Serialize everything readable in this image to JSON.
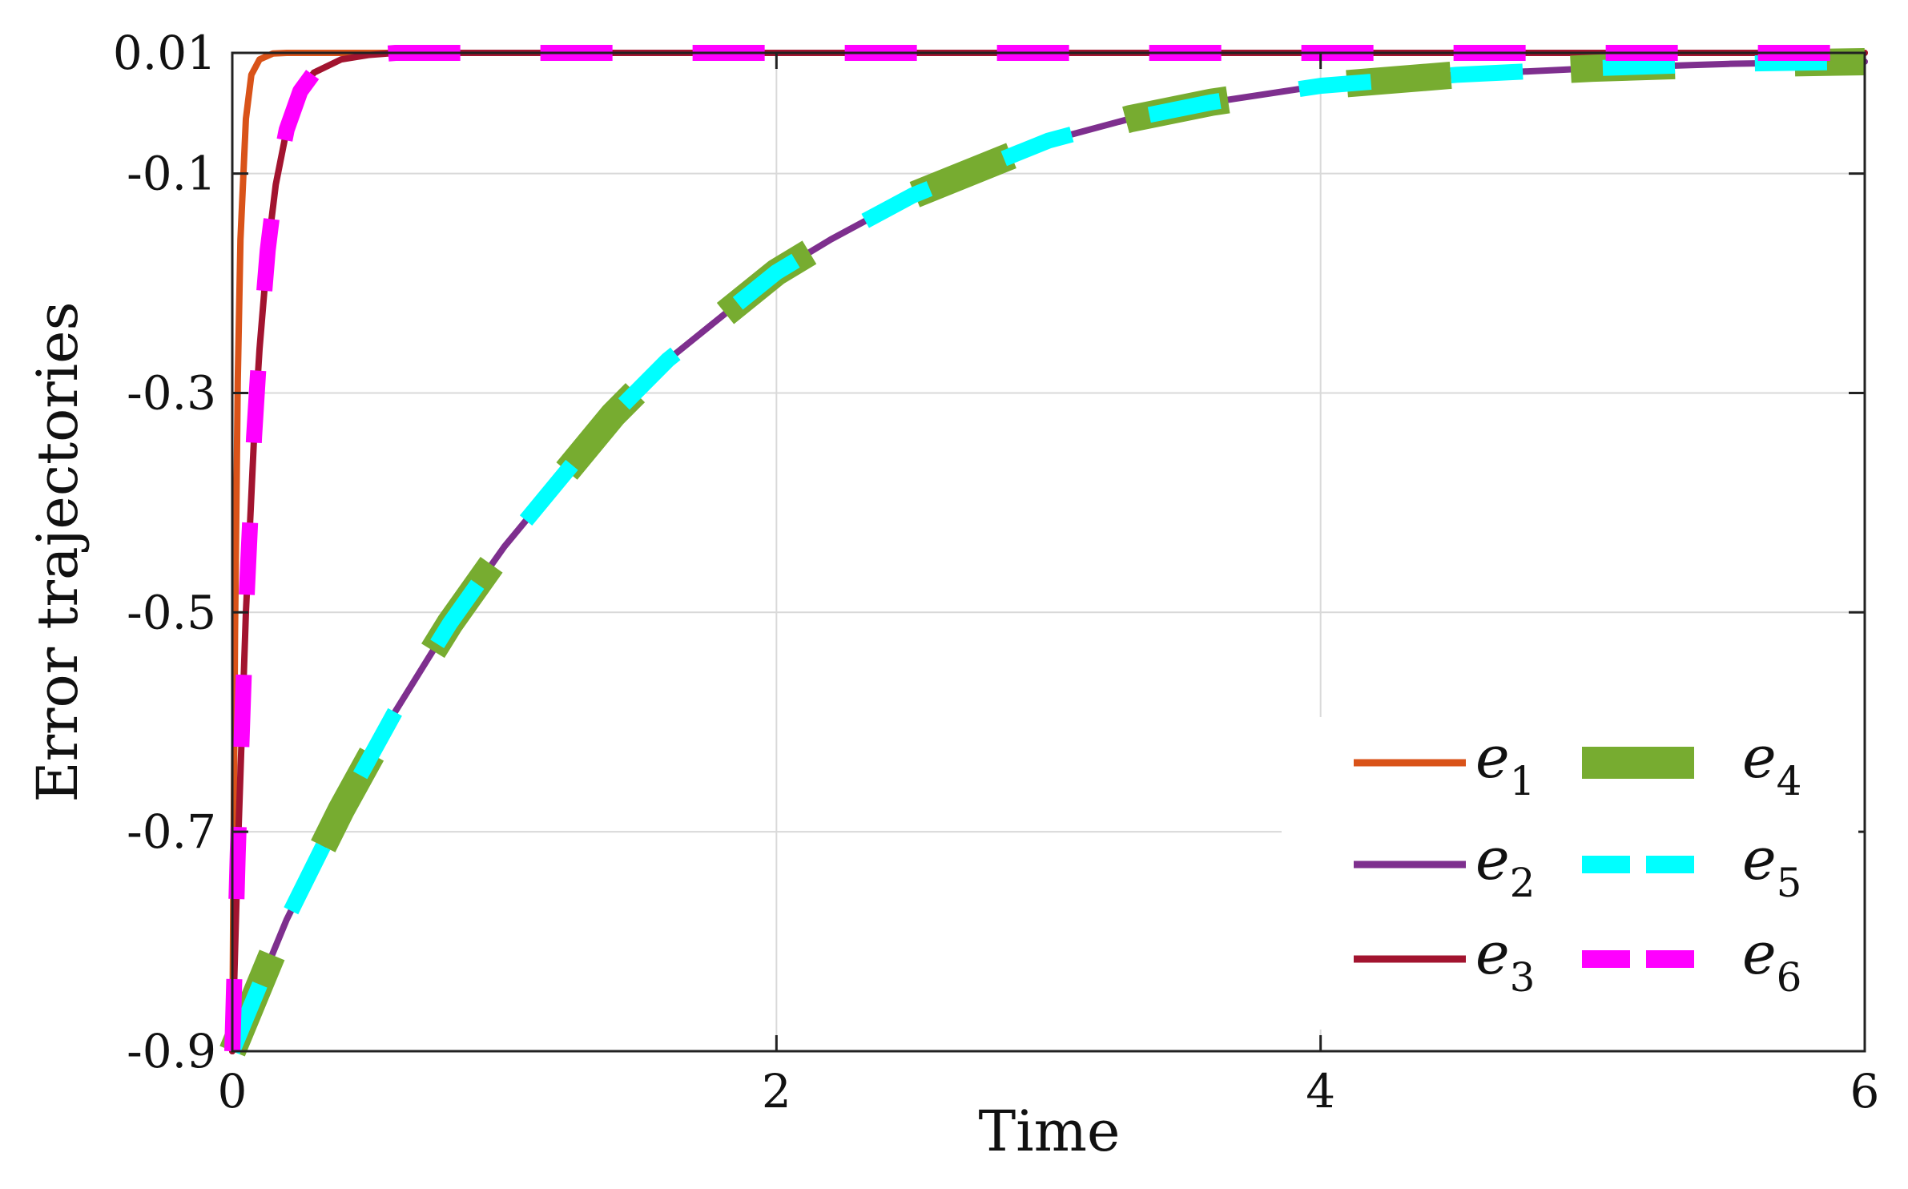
{
  "chart_data": {
    "type": "line",
    "title": "",
    "xlabel": "Time",
    "ylabel": "Error trajectories",
    "xlim": [
      0,
      6
    ],
    "ylim": [
      -0.9,
      0.01
    ],
    "xticks": [
      0,
      2,
      4,
      6
    ],
    "xtick_labels": [
      "0",
      "2",
      "4",
      "6"
    ],
    "yticks": [
      0.01,
      -0.1,
      -0.3,
      -0.5,
      -0.7,
      -0.9
    ],
    "ytick_labels": [
      "0.01",
      "-0.1",
      "-0.3",
      "-0.5",
      "-0.7",
      "-0.9"
    ],
    "grid": true,
    "legend_placement": "bottom-right",
    "series": [
      {
        "name": "e1",
        "color": "#D95319",
        "style": "solid",
        "x": [
          0,
          0.01,
          0.02,
          0.03,
          0.05,
          0.07,
          0.1,
          0.15,
          0.2,
          6
        ],
        "y": [
          -0.9,
          -0.52,
          -0.29,
          -0.16,
          -0.05,
          -0.01,
          0.004,
          0.0095,
          0.01,
          0.01
        ]
      },
      {
        "name": "e2",
        "color": "#7E2F8E",
        "style": "solid",
        "x": [
          0,
          0.1,
          0.2,
          0.4,
          0.6,
          0.8,
          1.0,
          1.2,
          1.4,
          1.6,
          1.8,
          2.0,
          2.2,
          2.5,
          2.8,
          3.0,
          3.3,
          3.6,
          4.0,
          4.5,
          5.0,
          5.5,
          6.0
        ],
        "y": [
          -0.9,
          -0.84,
          -0.78,
          -0.68,
          -0.59,
          -0.51,
          -0.44,
          -0.38,
          -0.32,
          -0.27,
          -0.23,
          -0.19,
          -0.16,
          -0.12,
          -0.09,
          -0.07,
          -0.05,
          -0.035,
          -0.02,
          -0.01,
          -0.004,
          0.0,
          0.002
        ]
      },
      {
        "name": "e3",
        "color": "#A2142F",
        "style": "solid",
        "x": [
          0,
          0.02,
          0.05,
          0.08,
          0.1,
          0.13,
          0.16,
          0.2,
          0.25,
          0.3,
          0.4,
          0.5,
          0.6,
          6
        ],
        "y": [
          -0.9,
          -0.72,
          -0.5,
          -0.34,
          -0.26,
          -0.17,
          -0.11,
          -0.06,
          -0.025,
          -0.008,
          0.004,
          0.008,
          0.01,
          0.01
        ]
      },
      {
        "name": "e4",
        "color": "#77AC30",
        "style": "dashed-thick",
        "x": [
          0,
          0.1,
          0.2,
          0.4,
          0.6,
          0.8,
          1.0,
          1.2,
          1.4,
          1.6,
          1.8,
          2.0,
          2.2,
          2.5,
          2.8,
          3.0,
          3.3,
          3.6,
          4.0,
          4.5,
          5.0,
          5.5,
          6.0
        ],
        "y": [
          -0.9,
          -0.84,
          -0.78,
          -0.68,
          -0.59,
          -0.51,
          -0.44,
          -0.38,
          -0.32,
          -0.27,
          -0.23,
          -0.19,
          -0.16,
          -0.12,
          -0.09,
          -0.07,
          -0.05,
          -0.035,
          -0.02,
          -0.01,
          -0.004,
          0.0,
          0.002
        ]
      },
      {
        "name": "e5",
        "color": "#00FFFF",
        "style": "dashed",
        "x": [
          0,
          0.1,
          0.2,
          0.4,
          0.6,
          0.8,
          1.0,
          1.2,
          1.4,
          1.6,
          1.8,
          2.0,
          2.2,
          2.5,
          2.8,
          3.0,
          3.3,
          3.6,
          4.0,
          4.5,
          5.0,
          5.5,
          6.0
        ],
        "y": [
          -0.9,
          -0.84,
          -0.78,
          -0.68,
          -0.59,
          -0.51,
          -0.44,
          -0.38,
          -0.32,
          -0.27,
          -0.23,
          -0.19,
          -0.16,
          -0.12,
          -0.09,
          -0.07,
          -0.05,
          -0.035,
          -0.02,
          -0.01,
          -0.004,
          0.0,
          0.002
        ]
      },
      {
        "name": "e6",
        "color": "#FF00FF",
        "style": "dashed",
        "x": [
          0,
          0.02,
          0.05,
          0.08,
          0.1,
          0.13,
          0.16,
          0.2,
          0.25,
          0.3,
          0.4,
          0.5,
          0.6,
          6
        ],
        "y": [
          -0.9,
          -0.72,
          -0.5,
          -0.34,
          -0.26,
          -0.17,
          -0.11,
          -0.06,
          -0.025,
          -0.008,
          0.004,
          0.008,
          0.01,
          0.01
        ]
      }
    ],
    "legend": [
      {
        "base": "e",
        "sub": "1",
        "series": 0
      },
      {
        "base": "e",
        "sub": "4",
        "series": 3
      },
      {
        "base": "e",
        "sub": "2",
        "series": 1
      },
      {
        "base": "e",
        "sub": "5",
        "series": 4
      },
      {
        "base": "e",
        "sub": "3",
        "series": 2
      },
      {
        "base": "e",
        "sub": "6",
        "series": 5
      }
    ]
  }
}
